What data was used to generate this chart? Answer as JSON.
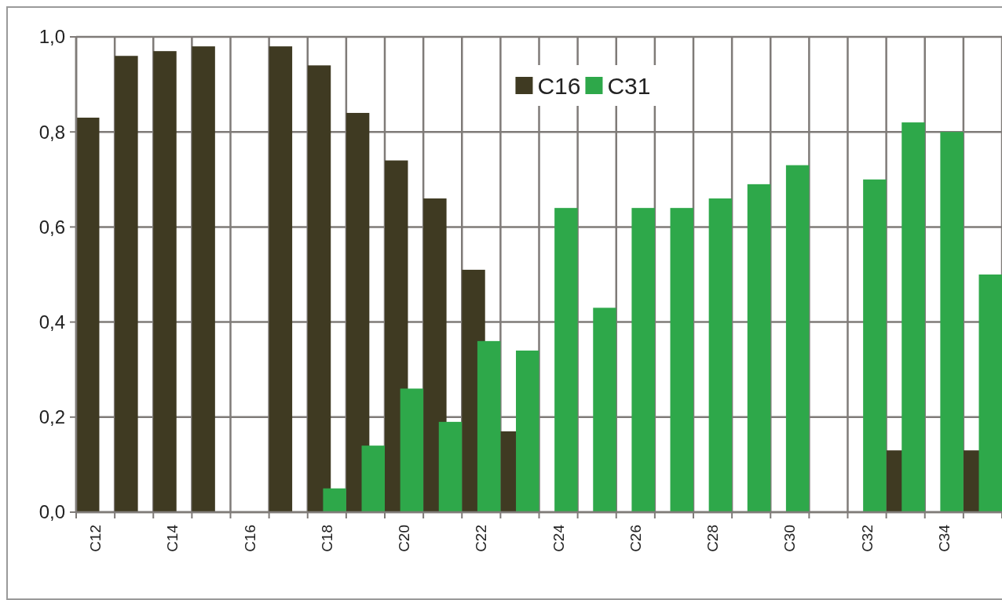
{
  "chart_data": {
    "type": "bar",
    "categories": [
      "C12",
      null,
      "C14",
      null,
      "C16",
      null,
      "C18",
      null,
      "C20",
      null,
      "C22",
      null,
      "C24",
      null,
      "C26",
      null,
      "C28",
      null,
      "C30",
      null,
      "C32",
      null,
      "C34",
      null
    ],
    "series": [
      {
        "name": "C16",
        "color": "#3f3a22",
        "values": [
          0.83,
          0.96,
          0.97,
          0.98,
          0,
          0.98,
          0.94,
          0.84,
          0.74,
          0.66,
          0.51,
          0.17,
          0,
          0,
          0,
          0,
          0,
          0,
          0,
          0,
          0,
          0.13,
          0,
          0.13
        ]
      },
      {
        "name": "C31",
        "color": "#2ea84a",
        "values": [
          0,
          0,
          0,
          0,
          0,
          0,
          0.05,
          0.14,
          0.26,
          0.19,
          0.36,
          0.34,
          0.64,
          0.43,
          0.64,
          0.64,
          0.66,
          0.69,
          0.73,
          0,
          0.7,
          0.82,
          0.8,
          0.5
        ]
      }
    ],
    "ylim": [
      0,
      1
    ],
    "yticks": [
      {
        "value": 0,
        "label": "0,0"
      },
      {
        "value": 0.2,
        "label": "0,2"
      },
      {
        "value": 0.4,
        "label": "0,4"
      },
      {
        "value": 0.6,
        "label": "0,6"
      },
      {
        "value": 0.8,
        "label": "0,8"
      },
      {
        "value": 1,
        "label": "1,0"
      }
    ],
    "grid": true,
    "legend": "top"
  }
}
